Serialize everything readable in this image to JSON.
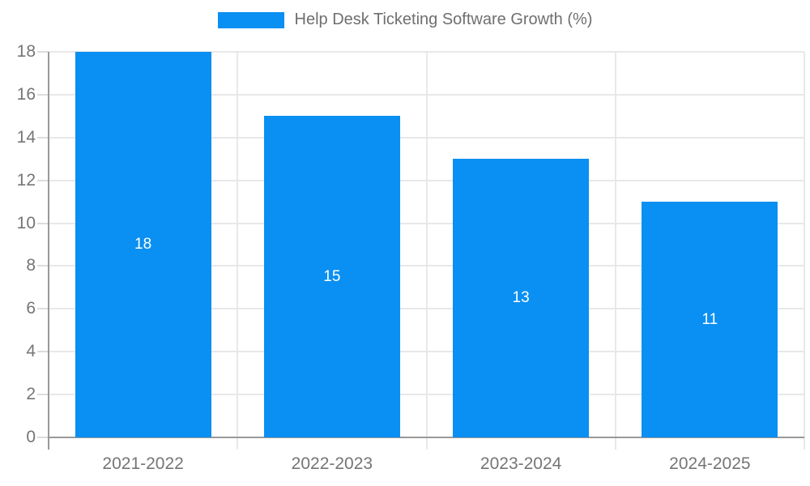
{
  "chart_data": {
    "type": "bar",
    "title": "Help Desk Ticketing Software Growth (%)",
    "legend": {
      "entries": [
        "Help Desk Ticketing Software Growth (%)"
      ],
      "position": "top-center"
    },
    "categories": [
      "2021-2022",
      "2022-2023",
      "2023-2024",
      "2024-2025"
    ],
    "series": [
      {
        "name": "Help Desk Ticketing Software Growth (%)",
        "values": [
          18,
          15,
          13,
          11
        ]
      }
    ],
    "bar_value_labels": [
      "18",
      "15",
      "13",
      "11"
    ],
    "xlabel": "",
    "ylabel": "",
    "ylim": [
      0,
      18
    ],
    "ytick_step": 2,
    "yticks": [
      0,
      2,
      4,
      6,
      8,
      10,
      12,
      14,
      16,
      18
    ],
    "grid": true,
    "colors": {
      "bar": "#0A8FF2",
      "bar_label_text": "#ffffff",
      "axis_text": "#757575",
      "legend_text": "#6f6f6f",
      "grid_line": "#e8e8e8",
      "tick_line": "#dcdcdc",
      "axis_line": "#999999",
      "background": "#ffffff"
    }
  }
}
